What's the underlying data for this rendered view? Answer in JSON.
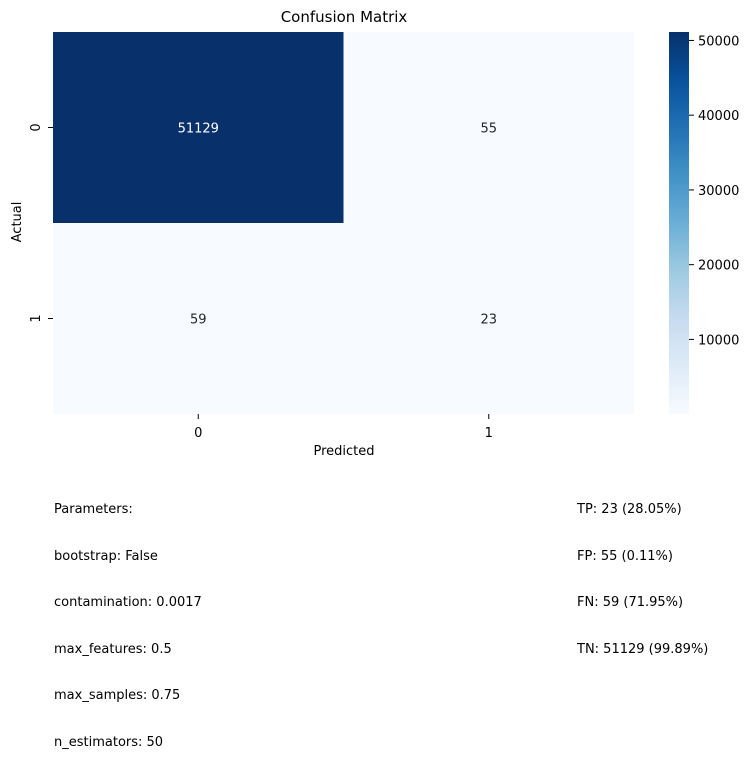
{
  "chart_data": {
    "type": "heatmap",
    "title": "Confusion Matrix",
    "xlabel": "Predicted",
    "ylabel": "Actual",
    "x_categories": [
      "0",
      "1"
    ],
    "y_categories": [
      "0",
      "1"
    ],
    "values": [
      [
        51129,
        55
      ],
      [
        59,
        23
      ]
    ],
    "annotations": [
      [
        "51129",
        "55"
      ],
      [
        "59",
        "23"
      ]
    ],
    "colormap": "Blues",
    "color_min": "#f7fbff",
    "color_max": "#08306b",
    "colorbar": {
      "vmin": 23,
      "vmax": 51129,
      "ticks": [
        10000,
        20000,
        30000,
        40000,
        50000
      ],
      "tick_labels": [
        "10000",
        "20000",
        "30000",
        "40000",
        "50000"
      ]
    },
    "grid": false,
    "legend": "colorbar-right"
  },
  "parameters": {
    "heading": "Parameters:",
    "lines": [
      "bootstrap: False",
      "contamination: 0.0017",
      "max_features: 0.5",
      "max_samples: 0.75",
      "n_estimators: 50"
    ]
  },
  "metrics": {
    "lines": [
      "TP: 23 (28.05%)",
      "FP: 55 (0.11%)",
      "FN: 59 (71.95%)",
      "TN: 51129 (99.89%)"
    ]
  }
}
